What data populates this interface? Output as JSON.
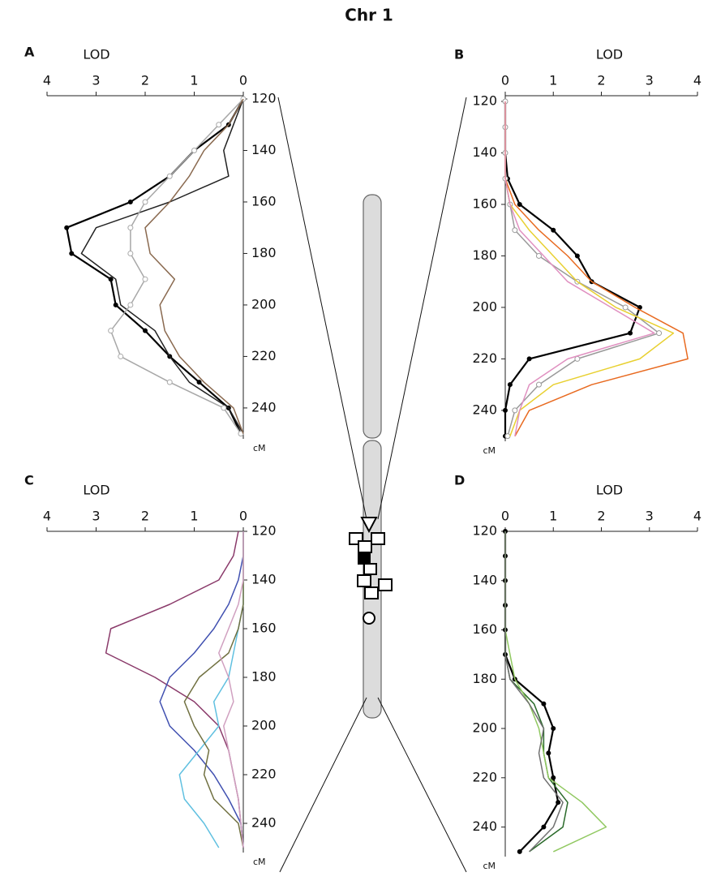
{
  "title": "Chr 1",
  "chart_data": [
    {
      "type": "line",
      "panel": "A",
      "ylabel": "LOD",
      "xlabel": "cM",
      "reversed": true,
      "ylim": [
        0,
        4
      ],
      "yticks": [
        0,
        1,
        2,
        3,
        4
      ],
      "xlim": [
        120,
        252
      ],
      "xticks": [
        120,
        140,
        160,
        180,
        200,
        220,
        240
      ],
      "x": [
        120,
        130,
        140,
        150,
        160,
        170,
        180,
        190,
        200,
        210,
        220,
        230,
        240,
        250
      ],
      "series": [
        {
          "color": "#000000",
          "marker": "dot",
          "values": [
            0,
            0.3,
            1.0,
            1.5,
            2.3,
            3.6,
            3.5,
            2.7,
            2.6,
            2.0,
            1.5,
            0.9,
            0.3,
            0.05
          ]
        },
        {
          "color": "#222222",
          "marker": "none",
          "values": [
            0,
            0.2,
            0.4,
            0.3,
            1.5,
            3.0,
            3.3,
            2.6,
            2.5,
            1.8,
            1.5,
            1.1,
            0.3,
            0
          ]
        },
        {
          "color": "#a8a8a8",
          "marker": "circle",
          "values": [
            0,
            0.5,
            1.0,
            1.5,
            2.0,
            2.3,
            2.3,
            2.0,
            2.3,
            2.7,
            2.5,
            1.5,
            0.4,
            0.05
          ]
        },
        {
          "color": "#8a6a50",
          "marker": "none",
          "values": [
            0,
            0.3,
            0.8,
            1.1,
            1.5,
            2.0,
            1.9,
            1.4,
            1.7,
            1.6,
            1.3,
            0.8,
            0.2,
            0
          ]
        }
      ]
    },
    {
      "type": "line",
      "panel": "B",
      "ylabel": "LOD",
      "xlabel": "cM",
      "reversed": false,
      "ylim": [
        0,
        4
      ],
      "yticks": [
        0,
        1,
        2,
        3,
        4
      ],
      "xlim": [
        120,
        252
      ],
      "xticks": [
        120,
        140,
        160,
        180,
        200,
        220,
        240
      ],
      "x": [
        120,
        130,
        140,
        150,
        160,
        170,
        180,
        190,
        200,
        210,
        220,
        230,
        240,
        250
      ],
      "series": [
        {
          "color": "#000000",
          "marker": "dot",
          "values": [
            0,
            0,
            0,
            0.05,
            0.3,
            1.0,
            1.5,
            1.8,
            2.8,
            2.6,
            0.5,
            0.1,
            0,
            0
          ]
        },
        {
          "color": "#999999",
          "marker": "circle",
          "values": [
            0,
            0,
            0,
            0,
            0.1,
            0.2,
            0.7,
            1.5,
            2.5,
            3.2,
            1.5,
            0.7,
            0.2,
            0.05
          ]
        },
        {
          "color": "#e86a20",
          "marker": "none",
          "values": [
            0,
            0,
            0,
            0,
            0.2,
            0.7,
            1.3,
            1.8,
            2.7,
            3.7,
            3.8,
            1.8,
            0.5,
            0.2
          ]
        },
        {
          "color": "#e8d030",
          "marker": "none",
          "values": [
            0,
            0,
            0,
            0,
            0.1,
            0.5,
            1.0,
            1.5,
            2.3,
            3.5,
            2.8,
            1.0,
            0.3,
            0.1
          ]
        },
        {
          "color": "#e090c0",
          "marker": "none",
          "values": [
            0,
            0,
            0,
            0,
            0.1,
            0.3,
            0.8,
            1.3,
            2.2,
            3.1,
            1.3,
            0.5,
            0.3,
            0.2
          ]
        }
      ]
    },
    {
      "type": "line",
      "panel": "C",
      "ylabel": "LOD",
      "xlabel": "cM",
      "reversed": true,
      "ylim": [
        0,
        4
      ],
      "yticks": [
        0,
        1,
        2,
        3,
        4
      ],
      "xlim": [
        120,
        252
      ],
      "xticks": [
        120,
        140,
        160,
        180,
        200,
        220,
        240
      ],
      "x": [
        120,
        130,
        140,
        150,
        160,
        170,
        180,
        190,
        200,
        210,
        220,
        230,
        240,
        250
      ],
      "series": [
        {
          "color": "#8a3a6a",
          "marker": "none",
          "values": [
            0.1,
            0.2,
            0.5,
            1.5,
            2.7,
            2.8,
            1.8,
            1.0,
            0.5,
            0.3,
            0.2,
            0.1,
            0.05,
            0
          ]
        },
        {
          "color": "#4050b0",
          "marker": "none",
          "values": [
            0,
            0,
            0.1,
            0.3,
            0.6,
            1.0,
            1.5,
            1.7,
            1.5,
            1.0,
            0.6,
            0.3,
            0.05,
            0
          ]
        },
        {
          "color": "#60c0e0",
          "marker": "none",
          "values": [
            0,
            0,
            0,
            0,
            0.1,
            0.2,
            0.3,
            0.6,
            0.5,
            0.9,
            1.3,
            1.2,
            0.8,
            0.5
          ]
        },
        {
          "color": "#707040",
          "marker": "none",
          "values": [
            0,
            0,
            0,
            0,
            0.1,
            0.3,
            0.9,
            1.2,
            1.0,
            0.7,
            0.8,
            0.6,
            0.1,
            0
          ]
        },
        {
          "color": "#d0a0c0",
          "marker": "none",
          "values": [
            0,
            0,
            0,
            0.1,
            0.3,
            0.5,
            0.3,
            0.2,
            0.4,
            0.3,
            0.2,
            0.1,
            0.05,
            0
          ]
        }
      ]
    },
    {
      "type": "line",
      "panel": "D",
      "ylabel": "LOD",
      "xlabel": "cM",
      "reversed": false,
      "ylim": [
        0,
        4
      ],
      "yticks": [
        0,
        1,
        2,
        3,
        4
      ],
      "xlim": [
        120,
        252
      ],
      "xticks": [
        120,
        140,
        160,
        180,
        200,
        220,
        240
      ],
      "x": [
        120,
        130,
        140,
        150,
        160,
        170,
        180,
        190,
        200,
        210,
        220,
        230,
        240,
        250
      ],
      "series": [
        {
          "color": "#000000",
          "marker": "dot",
          "values": [
            0,
            0,
            0,
            0,
            0,
            0,
            0.2,
            0.8,
            1.0,
            0.9,
            1.0,
            1.1,
            0.8,
            0.3
          ]
        },
        {
          "color": "#2a6a2a",
          "marker": "none",
          "values": [
            0,
            0,
            0,
            0,
            0,
            0,
            0.1,
            0.6,
            0.8,
            0.8,
            0.9,
            1.3,
            1.2,
            0.5
          ]
        },
        {
          "color": "#90c860",
          "marker": "none",
          "values": [
            0,
            0,
            0,
            0,
            0,
            0.1,
            0.2,
            0.5,
            0.7,
            0.8,
            0.9,
            1.6,
            2.1,
            1.0
          ]
        },
        {
          "color": "#707070",
          "marker": "none",
          "values": [
            0,
            0,
            0,
            0,
            0,
            0,
            0.1,
            0.5,
            0.8,
            0.7,
            0.8,
            1.2,
            1.0,
            0.5
          ]
        }
      ]
    }
  ]
}
